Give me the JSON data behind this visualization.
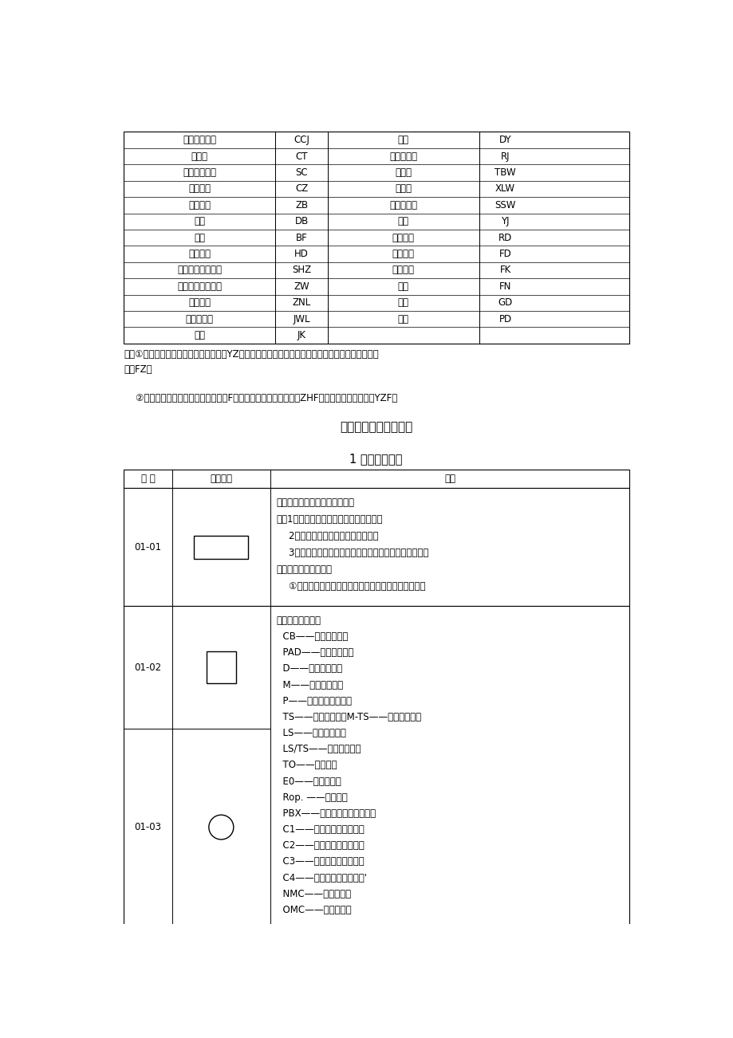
{
  "bg_color": "#ffffff",
  "top_table_rows": [
    [
      "程控长话交换",
      "CCJ",
      "电源",
      "DY"
    ],
    [
      "长途台",
      "CT",
      "计算机软件",
      "RJ"
    ],
    [
      "数据传输通信",
      "SC",
      "同步网",
      "TBW"
    ],
    [
      "传真通信",
      "CZ",
      "信令网",
      "XLW"
    ],
    [
      "自动转报",
      "ZB",
      "数字数据网",
      "SSW"
    ],
    [
      "电报",
      "DB",
      "油机",
      "YJ"
    ],
    [
      "报房",
      "BF",
      "弱电系统",
      "RD"
    ],
    [
      "会议电话",
      "HD",
      "电气装置",
      "FD"
    ],
    [
      "数字用户环路载波",
      "SHZ",
      "空调通风",
      "FK"
    ],
    [
      "中继线无人增音站",
      "ZW",
      "暖气",
      "FN"
    ],
    [
      "智能大楼",
      "ZNL",
      "管道",
      "GD"
    ],
    [
      "计算机网络",
      "JWL",
      "配电",
      "PD"
    ],
    [
      "监控",
      "JK",
      "",
      ""
    ]
  ],
  "note_lines": [
    "注：①总说明附的总图和工艺图纸一律用YZ，总说明中引用的单项设计的图纸编号不变，土建图纸一",
    "律用FZ。",
    "",
    "    ②单项工程土建要求在专业代号后加F，例如载波室土建要求图为ZHF；综合性土建要求图为YZF。"
  ],
  "section_title": "三、图形符号（摘编）",
  "sub_title": "1 有线通信局站",
  "table2_headers": [
    "序 号",
    "图形符号",
    "说明"
  ],
  "row01_desc": [
    "通信局、所、站、台的一般符号",
    "注：1．必要的可根据建筑物的形状绘制；",
    "    2．圆形符号一级表示小型从属站；",
    "    3．可以加注文字符号来表示不同的等级、规模、用途、",
    "容量及局号等。例如；",
    "    ①必要时在方框符号中加入以下代号，表示不同的电话"
  ],
  "row02_desc": [
    "交换局、站、台：",
    "  CB——共电电话站；",
    "  PAD——人防电话站；",
    "  D——调度电话站；",
    "  M——会议电话站；",
    "  P——生产扩音电话站；",
    "  TS——长话交换局；M-TS——人工长途局；",
    "  LS——市话交换局；",
    "  LS/TS——长市合一局；",
    "  TO——汇按局；",
    "  E0——市话端局；",
    "  Rop. ——中继站；",
    "  PBX——用户小交换机电话站。",
    "  C1——一级长话交换中心；",
    "  C2——二级长话交换中心；",
    "  C3——三级长话交换中心；",
    "  C4——四级长话交换中心；'",
    "  NMC——网管中心，",
    "  OMC——维护中心；"
  ]
}
